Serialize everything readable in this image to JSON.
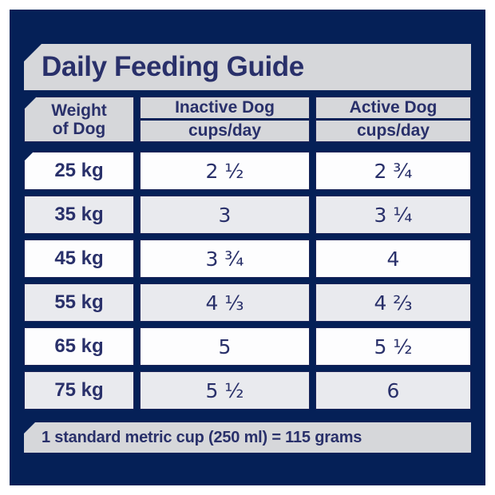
{
  "colors": {
    "panel_navy": "#052057",
    "band_gray": "#d6d7da",
    "text_navy": "#29306a",
    "cell_border_navy": "#1b2458",
    "row_white": "#fdfdfe",
    "row_gray": "#e9eaee",
    "outer_margin": "#ffffff"
  },
  "title": "Daily Feeding Guide",
  "table": {
    "weight_header_line1": "Weight",
    "weight_header_line2": "of Dog",
    "columns": [
      {
        "label": "Inactive Dog",
        "unit": "cups/day"
      },
      {
        "label": "Active Dog",
        "unit": "cups/day"
      }
    ],
    "rows": [
      {
        "weight": "25 kg",
        "inactive": "2 ½",
        "active": "2 ¾"
      },
      {
        "weight": "35 kg",
        "inactive": "3",
        "active": "3 ¼"
      },
      {
        "weight": "45 kg",
        "inactive": "3 ¾",
        "active": "4"
      },
      {
        "weight": "55 kg",
        "inactive": "4 ⅓",
        "active": "4 ⅔"
      },
      {
        "weight": "65 kg",
        "inactive": "5",
        "active": "5 ½"
      },
      {
        "weight": "75 kg",
        "inactive": "5 ½",
        "active": "6"
      }
    ]
  },
  "footer": "1 standard metric cup (250 ml) = 115 grams",
  "chart_data": {
    "type": "table",
    "title": "Daily Feeding Guide",
    "columns": [
      "Weight of Dog",
      "Inactive Dog cups/day",
      "Active Dog cups/day"
    ],
    "rows": [
      [
        "25 kg",
        "2 ½",
        "2 ¾"
      ],
      [
        "35 kg",
        "3",
        "3 ¼"
      ],
      [
        "45 kg",
        "3 ¾",
        "4"
      ],
      [
        "55 kg",
        "4 ⅓",
        "4 ⅔"
      ],
      [
        "65 kg",
        "5",
        "5 ½"
      ],
      [
        "75 kg",
        "5 ½",
        "6"
      ]
    ],
    "weights_kg": [
      25,
      35,
      45,
      55,
      65,
      75
    ],
    "inactive_cups_per_day": [
      2.5,
      3,
      3.75,
      4.333,
      5,
      5.5
    ],
    "active_cups_per_day": [
      2.75,
      3.25,
      4,
      4.667,
      5.5,
      6
    ],
    "note": "1 standard metric cup (250 ml) = 115 grams",
    "cup_volume_ml": 250,
    "grams_per_cup": 115
  }
}
